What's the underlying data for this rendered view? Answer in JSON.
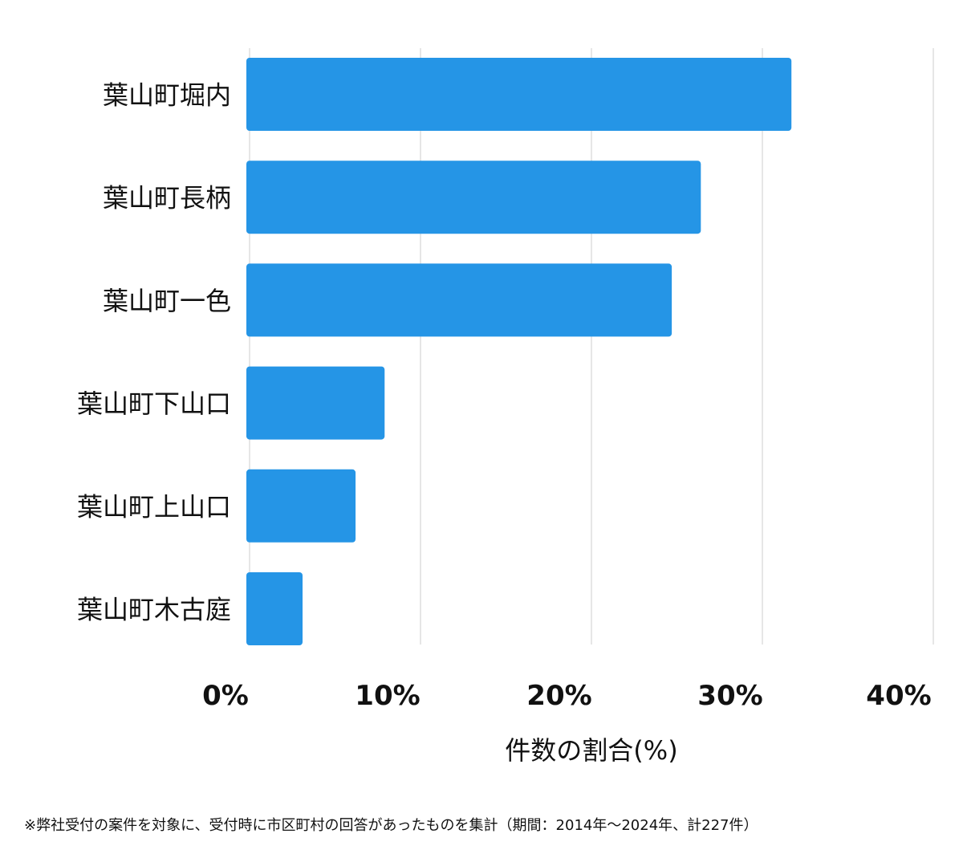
{
  "chart_data": {
    "type": "bar",
    "orientation": "horizontal",
    "categories": [
      "葉山町堀内",
      "葉山町長柄",
      "葉山町一色",
      "葉山町下山口",
      "葉山町上山口",
      "葉山町木古庭"
    ],
    "values": [
      31.7,
      26.4,
      24.7,
      7.9,
      6.2,
      3.1
    ],
    "xlabel": "件数の割合(%)",
    "ylabel": "",
    "xlim": [
      0,
      40
    ],
    "xticks": [
      0,
      10,
      20,
      30,
      40
    ],
    "xtick_labels": [
      "0%",
      "10%",
      "20%",
      "30%",
      "40%"
    ],
    "grid": "vertical",
    "legend": "none",
    "bar_color": "#2595e6"
  },
  "footnote": "※弊社受付の案件を対象に、受付時に市区町村の回答があったものを集計（期間：2014年〜2024年、計227件）",
  "colors": {
    "bar": "#2595e6",
    "grid": "#cccccc",
    "text": "#111111"
  }
}
